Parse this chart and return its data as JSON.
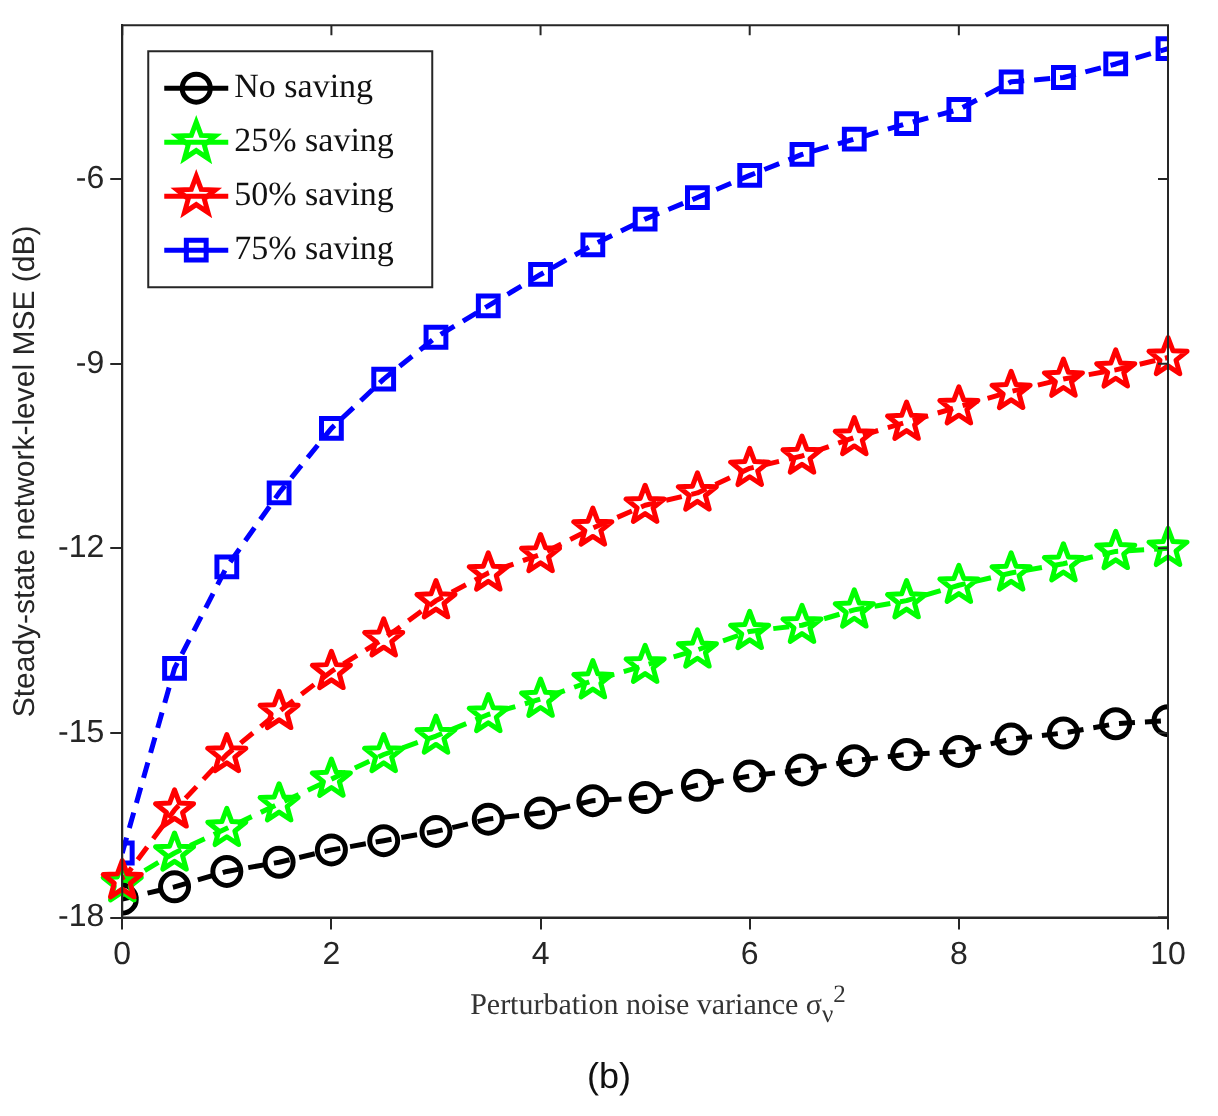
{
  "chart_data": {
    "type": "line",
    "xlabel": "Perturbation noise variance σ$_{ν}$$^{2}$",
    "ylabel": "Steady-state network-level MSE (dB)",
    "annotations": [
      "(b)"
    ],
    "x": [
      0,
      0.5,
      1,
      1.5,
      2,
      2.5,
      3,
      3.5,
      4,
      4.5,
      5,
      5.5,
      6,
      6.5,
      7,
      7.5,
      8,
      8.5,
      9,
      9.5,
      10
    ],
    "xlim": [
      0,
      10
    ],
    "xticks": [
      0,
      2,
      4,
      6,
      8,
      10
    ],
    "ylim": [
      -18,
      -3.5
    ],
    "yticks": [
      -18,
      -15,
      -12,
      -9,
      -6
    ],
    "grid": false,
    "legend": "top left",
    "line_style": "dashed",
    "series": [
      {
        "name": "No saving",
        "color": "#000000",
        "marker": "circle",
        "values": [
          -17.7,
          -17.5,
          -17.25,
          -17.1,
          -16.9,
          -16.75,
          -16.6,
          -16.4,
          -16.3,
          -16.1,
          -16.05,
          -15.85,
          -15.7,
          -15.6,
          -15.45,
          -15.35,
          -15.3,
          -15.1,
          -15.0,
          -14.85,
          -14.8
        ]
      },
      {
        "name": "25% saving",
        "color": "#00ff00",
        "marker": "star",
        "values": [
          -17.45,
          -16.95,
          -16.55,
          -16.15,
          -15.75,
          -15.35,
          -15.05,
          -14.7,
          -14.45,
          -14.15,
          -13.9,
          -13.65,
          -13.35,
          -13.25,
          -13.0,
          -12.85,
          -12.6,
          -12.4,
          -12.25,
          -12.05,
          -12.0
        ]
      },
      {
        "name": "50% saving",
        "color": "#ff0000",
        "marker": "star",
        "values": [
          -17.4,
          -16.25,
          -15.35,
          -14.65,
          -14.0,
          -13.47,
          -12.85,
          -12.4,
          -12.1,
          -11.67,
          -11.3,
          -11.1,
          -10.7,
          -10.5,
          -10.2,
          -9.95,
          -9.7,
          -9.45,
          -9.25,
          -9.1,
          -8.9
        ]
      },
      {
        "name": "75% saving",
        "color": "#0000ff",
        "marker": "square",
        "values": [
          -16.95,
          -13.95,
          -12.3,
          -11.1,
          -10.05,
          -9.25,
          -8.57,
          -8.06,
          -7.55,
          -7.07,
          -6.65,
          -6.3,
          -5.94,
          -5.6,
          -5.35,
          -5.1,
          -4.87,
          -4.42,
          -4.35,
          -4.13,
          -3.88
        ]
      }
    ]
  }
}
